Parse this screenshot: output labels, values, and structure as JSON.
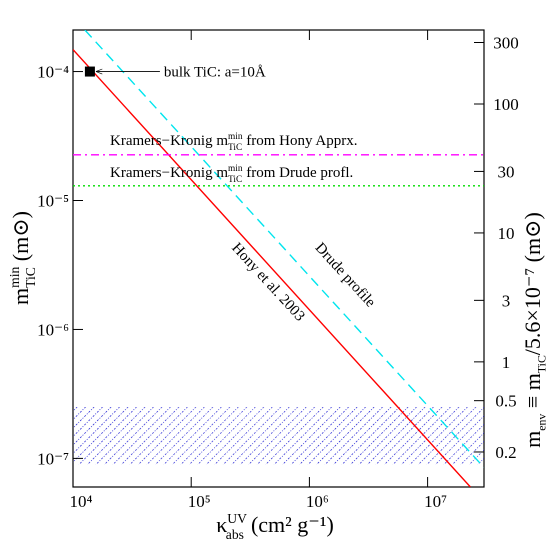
{
  "chart_data": {
    "type": "line",
    "xscale": "log",
    "yscale": "log",
    "xlim": [
      10000,
      30000000
    ],
    "ylim": [
      6e-08,
      0.00021
    ],
    "y2lim": [
      0.107,
      375
    ],
    "xticks": [
      {
        "value": 10000,
        "label": "10⁴"
      },
      {
        "value": 100000,
        "label": "10⁵"
      },
      {
        "value": 1000000,
        "label": "10⁶"
      },
      {
        "value": 10000000,
        "label": "10⁷"
      }
    ],
    "yticks": [
      {
        "value": 0.0001,
        "label": "10⁻⁴"
      },
      {
        "value": 1e-05,
        "label": "10⁻⁵"
      },
      {
        "value": 1e-06,
        "label": "10⁻⁶"
      },
      {
        "value": 1e-07,
        "label": "10⁻⁷"
      }
    ],
    "y2ticks": [
      300,
      100,
      30,
      10,
      3,
      1,
      0.5,
      0.2
    ],
    "xlabel": [
      {
        "text": "κ"
      },
      {
        "sup": "UV",
        "sub": "abs"
      },
      {
        "text": "  (cm² g⁻¹)"
      }
    ],
    "ylabel": [
      {
        "text": "m"
      },
      {
        "sup": "min",
        "sub": "TiC"
      },
      {
        "text": " (m⊙)"
      }
    ],
    "y2label": [
      {
        "text": "m"
      },
      {
        "sub": "env"
      },
      {
        "text": " ≡ m"
      },
      {
        "sub": "TiC"
      },
      {
        "text": "/5.6×10⁻⁷ (m⊙)"
      }
    ],
    "series": [
      {
        "name": [
          {
            "text": "Hony et al. 2003"
          }
        ],
        "color": "#ff0000",
        "dash": "solid",
        "x": [
          10000,
          23000000
        ],
        "values": [
          0.000148,
          6e-08
        ]
      },
      {
        "name": [
          {
            "text": "Drude profile"
          }
        ],
        "color": "#00e5ee",
        "dash": "dashed",
        "x": [
          12600,
          30000000
        ],
        "values": [
          0.00021,
          8.5e-08
        ]
      },
      {
        "name": [
          {
            "text": "Kramers−Kronig m"
          },
          {
            "sup": "min",
            "sub": "TiC"
          },
          {
            "text": " from Hony Apprx."
          }
        ],
        "color": "#ff00ff",
        "dash": "dashdot",
        "x": [
          10000,
          30000000
        ],
        "values": [
          2.26e-05,
          2.26e-05
        ]
      },
      {
        "name": [
          {
            "text": "Kramers−Kronig m"
          },
          {
            "sup": "min",
            "sub": "TiC"
          },
          {
            "text": " from Drude profl."
          }
        ],
        "color": "#00dd00",
        "dash": "dotted",
        "x": [
          10000,
          30000000
        ],
        "values": [
          1.3e-05,
          1.3e-05
        ]
      }
    ],
    "band": {
      "y": [
        9e-08,
        2.5e-07
      ],
      "color": "#0000cc"
    },
    "points": {
      "x": [
        13900
      ],
      "values": [
        0.0001
      ],
      "color": "#000000",
      "annotation": "bulk TiC: a=10Å"
    }
  }
}
